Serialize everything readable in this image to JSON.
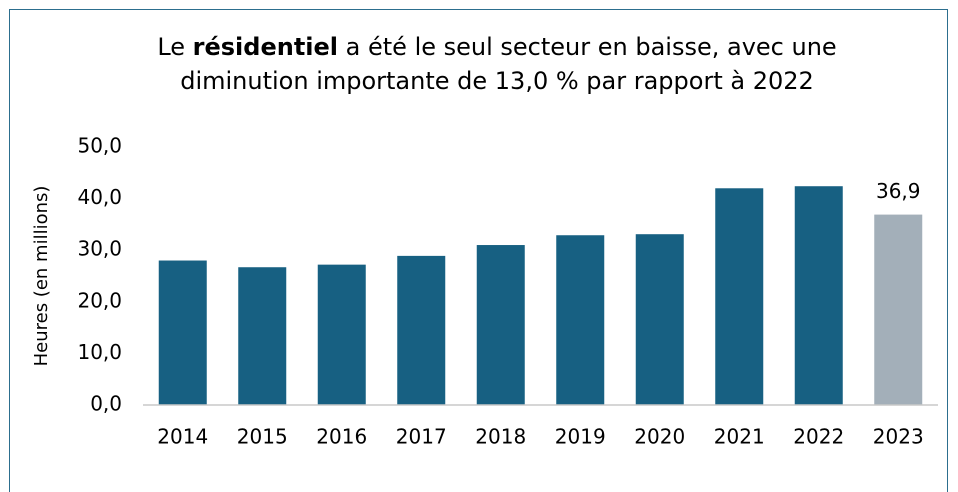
{
  "chart_data": {
    "type": "bar",
    "title": "Le résidentiel a été le seul secteur en baisse, avec une diminution importante de 13,0 % par rapport à 2022",
    "title_bold": "résidentiel",
    "y_label": "Heures (en millions)",
    "categories": [
      "2014",
      "2015",
      "2016",
      "2017",
      "2018",
      "2019",
      "2020",
      "2021",
      "2022",
      "2023"
    ],
    "values": [
      28.0,
      26.7,
      27.2,
      28.9,
      31.0,
      32.9,
      33.1,
      42.0,
      42.4,
      36.9
    ],
    "value_labels": [
      null,
      null,
      null,
      null,
      null,
      null,
      null,
      null,
      null,
      "36,9"
    ],
    "colors": [
      "#176082",
      "#176082",
      "#176082",
      "#176082",
      "#176082",
      "#176082",
      "#176082",
      "#176082",
      "#176082",
      "#a3afb9"
    ],
    "ylim": [
      0,
      50
    ],
    "yticks": [
      {
        "value": 0,
        "label": "0,0"
      },
      {
        "value": 10,
        "label": "10,0"
      },
      {
        "value": 20,
        "label": "20,0"
      },
      {
        "value": 30,
        "label": "30,0"
      },
      {
        "value": 40,
        "label": "40,0"
      },
      {
        "value": 50,
        "label": "50,0"
      }
    ],
    "grid": false
  }
}
